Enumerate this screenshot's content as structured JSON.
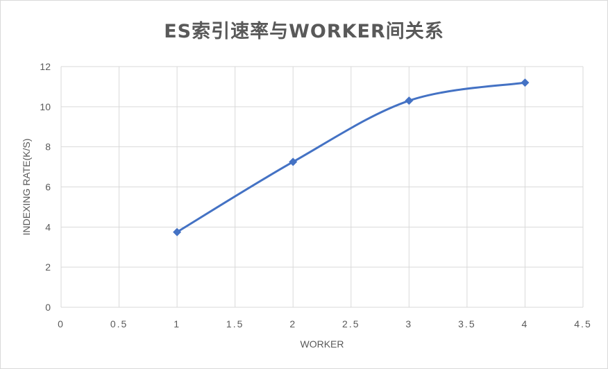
{
  "chart_data": {
    "type": "line",
    "title": "ES索引速率与WORKER间关系",
    "xlabel": "WORKER",
    "ylabel": "INDEXING RATE(K/S)",
    "xlim": [
      0,
      4.5
    ],
    "ylim": [
      0,
      12
    ],
    "x_ticks": [
      "0",
      "0.5",
      "1",
      "1.5",
      "2",
      "2.5",
      "3",
      "3.5",
      "4",
      "4.5"
    ],
    "y_ticks": [
      "0",
      "2",
      "4",
      "6",
      "8",
      "10",
      "12"
    ],
    "grid": true,
    "legend": "none",
    "smooth": true,
    "series": [
      {
        "x": [
          1,
          2,
          3,
          4
        ],
        "y": [
          3.75,
          7.25,
          10.3,
          11.2
        ]
      }
    ],
    "colors": {
      "line": "#4472c4",
      "grid": "#d9d9d9",
      "text": "#595959"
    }
  }
}
